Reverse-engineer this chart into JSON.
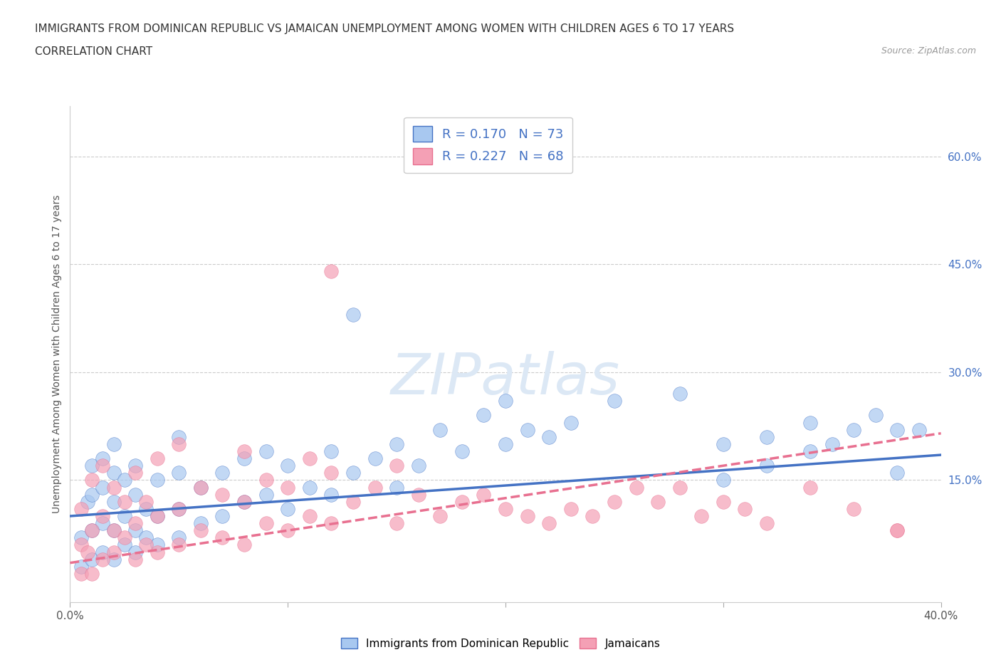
{
  "title_line1": "IMMIGRANTS FROM DOMINICAN REPUBLIC VS JAMAICAN UNEMPLOYMENT AMONG WOMEN WITH CHILDREN AGES 6 TO 17 YEARS",
  "title_line2": "CORRELATION CHART",
  "source_text": "Source: ZipAtlas.com",
  "ylabel": "Unemployment Among Women with Children Ages 6 to 17 years",
  "xlim": [
    0.0,
    0.4
  ],
  "ylim": [
    -0.02,
    0.67
  ],
  "yticks_right": [
    0.15,
    0.3,
    0.45,
    0.6
  ],
  "ytick_labels_right": [
    "15.0%",
    "30.0%",
    "45.0%",
    "60.0%"
  ],
  "legend_r1": "R = 0.170   N = 73",
  "legend_r2": "R = 0.227   N = 68",
  "legend_label1": "Immigrants from Dominican Republic",
  "legend_label2": "Jamaicans",
  "color_blue": "#A8C8F0",
  "color_pink": "#F4A0B5",
  "line_color_blue": "#4472C4",
  "line_color_pink": "#E87090",
  "watermark": "ZIPatlas",
  "blue_scatter_x": [
    0.005,
    0.005,
    0.008,
    0.01,
    0.01,
    0.01,
    0.01,
    0.015,
    0.015,
    0.015,
    0.015,
    0.02,
    0.02,
    0.02,
    0.02,
    0.02,
    0.025,
    0.025,
    0.025,
    0.03,
    0.03,
    0.03,
    0.03,
    0.035,
    0.035,
    0.04,
    0.04,
    0.04,
    0.05,
    0.05,
    0.05,
    0.05,
    0.06,
    0.06,
    0.07,
    0.07,
    0.08,
    0.08,
    0.09,
    0.09,
    0.1,
    0.1,
    0.11,
    0.12,
    0.12,
    0.13,
    0.13,
    0.14,
    0.15,
    0.15,
    0.16,
    0.17,
    0.18,
    0.19,
    0.2,
    0.2,
    0.21,
    0.22,
    0.23,
    0.25,
    0.28,
    0.3,
    0.32,
    0.34,
    0.35,
    0.36,
    0.37,
    0.38,
    0.39,
    0.3,
    0.32,
    0.34,
    0.38
  ],
  "blue_scatter_y": [
    0.03,
    0.07,
    0.12,
    0.04,
    0.08,
    0.13,
    0.17,
    0.05,
    0.09,
    0.14,
    0.18,
    0.04,
    0.08,
    0.12,
    0.16,
    0.2,
    0.06,
    0.1,
    0.15,
    0.05,
    0.08,
    0.13,
    0.17,
    0.07,
    0.11,
    0.06,
    0.1,
    0.15,
    0.07,
    0.11,
    0.16,
    0.21,
    0.09,
    0.14,
    0.1,
    0.16,
    0.12,
    0.18,
    0.13,
    0.19,
    0.11,
    0.17,
    0.14,
    0.13,
    0.19,
    0.16,
    0.38,
    0.18,
    0.14,
    0.2,
    0.17,
    0.22,
    0.19,
    0.24,
    0.2,
    0.26,
    0.22,
    0.21,
    0.23,
    0.26,
    0.27,
    0.2,
    0.21,
    0.23,
    0.2,
    0.22,
    0.24,
    0.16,
    0.22,
    0.15,
    0.17,
    0.19,
    0.22
  ],
  "pink_scatter_x": [
    0.005,
    0.005,
    0.005,
    0.008,
    0.01,
    0.01,
    0.01,
    0.015,
    0.015,
    0.015,
    0.02,
    0.02,
    0.02,
    0.025,
    0.025,
    0.03,
    0.03,
    0.03,
    0.035,
    0.035,
    0.04,
    0.04,
    0.04,
    0.05,
    0.05,
    0.05,
    0.06,
    0.06,
    0.07,
    0.07,
    0.08,
    0.08,
    0.08,
    0.09,
    0.09,
    0.1,
    0.1,
    0.11,
    0.11,
    0.12,
    0.12,
    0.13,
    0.14,
    0.15,
    0.15,
    0.16,
    0.17,
    0.18,
    0.19,
    0.2,
    0.21,
    0.22,
    0.23,
    0.24,
    0.25,
    0.26,
    0.27,
    0.28,
    0.29,
    0.3,
    0.31,
    0.32,
    0.34,
    0.36,
    0.38,
    0.2,
    0.12,
    0.38
  ],
  "pink_scatter_y": [
    0.02,
    0.06,
    0.11,
    0.05,
    0.02,
    0.08,
    0.15,
    0.04,
    0.1,
    0.17,
    0.05,
    0.08,
    0.14,
    0.07,
    0.12,
    0.04,
    0.09,
    0.16,
    0.06,
    0.12,
    0.05,
    0.1,
    0.18,
    0.06,
    0.11,
    0.2,
    0.08,
    0.14,
    0.07,
    0.13,
    0.06,
    0.12,
    0.19,
    0.09,
    0.15,
    0.08,
    0.14,
    0.1,
    0.18,
    0.09,
    0.16,
    0.12,
    0.14,
    0.09,
    0.17,
    0.13,
    0.1,
    0.12,
    0.13,
    0.11,
    0.1,
    0.09,
    0.11,
    0.1,
    0.12,
    0.14,
    0.12,
    0.14,
    0.1,
    0.12,
    0.11,
    0.09,
    0.14,
    0.11,
    0.08,
    0.6,
    0.44,
    0.08
  ]
}
